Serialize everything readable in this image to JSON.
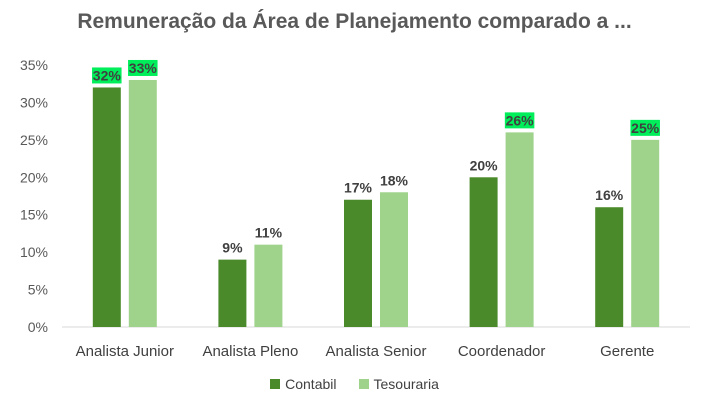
{
  "chart_data": {
    "type": "bar",
    "title": "Remuneração da Área de Planejamento comparado a ...",
    "categories": [
      "Analista Junior",
      "Analista Pleno",
      "Analista Senior",
      "Coordenador",
      "Gerente"
    ],
    "series": [
      {
        "name": "Contabil",
        "values": [
          32,
          9,
          17,
          20,
          16
        ],
        "labels": [
          "32%",
          "9%",
          "17%",
          "20%",
          "16%"
        ],
        "color": "#4a8a2a"
      },
      {
        "name": "Tesouraria",
        "values": [
          33,
          11,
          18,
          26,
          25
        ],
        "labels": [
          "33%",
          "11%",
          "18%",
          "26%",
          "25%"
        ],
        "color": "#9fd38c"
      }
    ],
    "highlighted_labels": [
      [
        0,
        0
      ],
      [
        1,
        0
      ],
      [
        1,
        3
      ],
      [
        1,
        4
      ]
    ],
    "highlight_color": "#00ee5a",
    "yticks": [
      "0%",
      "5%",
      "10%",
      "15%",
      "20%",
      "25%",
      "30%",
      "35%"
    ],
    "ylim": [
      0,
      35
    ],
    "xlabel": "",
    "ylabel": "",
    "grid": false,
    "legend_position": "bottom"
  }
}
